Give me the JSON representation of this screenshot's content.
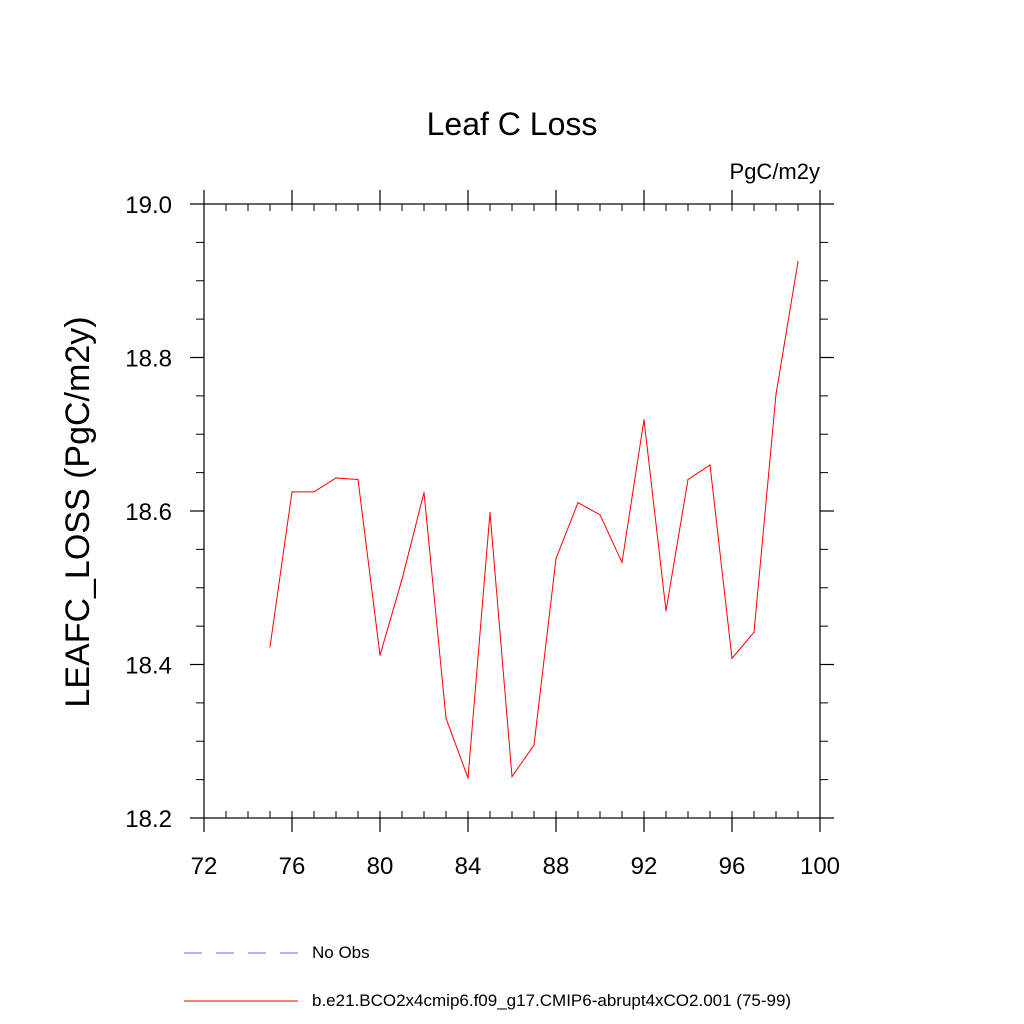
{
  "chart_data": {
    "type": "line",
    "title": "Leaf C Loss",
    "units_label": "PgC/m2y",
    "ylabel": "LEAFC_LOSS  (PgC/m2y)",
    "xlabel": "",
    "xlim": [
      72,
      100
    ],
    "ylim": [
      18.2,
      19.0
    ],
    "x_ticks": [
      72,
      76,
      80,
      84,
      88,
      92,
      96,
      100
    ],
    "x_minor_step": 1,
    "y_ticks": [
      "18.2",
      "18.4",
      "18.6",
      "18.8",
      "19.0"
    ],
    "y_minor_step": 0.05,
    "grid": false,
    "series": [
      {
        "name": "b.e21.BCO2x4cmip6.f09_g17.CMIP6-abrupt4xCO2.001 (75-99)",
        "color": "#ff0000",
        "style": "solid",
        "x": [
          75,
          76,
          77,
          78,
          79,
          80,
          81,
          82,
          83,
          84,
          85,
          86,
          87,
          88,
          89,
          90,
          91,
          92,
          93,
          94,
          95,
          96,
          97,
          98,
          99
        ],
        "values": [
          18.423,
          18.625,
          18.625,
          18.643,
          18.641,
          18.412,
          18.511,
          18.624,
          18.33,
          18.252,
          18.598,
          18.254,
          18.295,
          18.538,
          18.611,
          18.595,
          18.533,
          18.719,
          18.47,
          18.641,
          18.66,
          18.408,
          18.442,
          18.752,
          18.925
        ]
      }
    ],
    "legend": [
      {
        "label": "No Obs",
        "color": "#7070c8",
        "style": "dashed"
      },
      {
        "label": "b.e21.BCO2x4cmip6.f09_g17.CMIP6-abrupt4xCO2.001 (75-99)",
        "color": "#ff0000",
        "style": "solid"
      }
    ],
    "legend_position": "bottom"
  }
}
